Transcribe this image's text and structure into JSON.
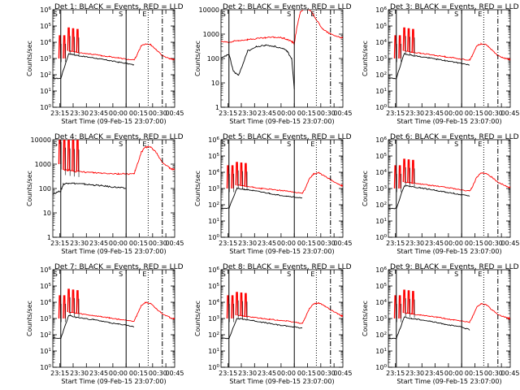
{
  "figure": {
    "start_time_label": "Start Time (09-Feb-15 23:07:00)",
    "ylabel": "Counts/sec",
    "x_tick_labels": [
      "23:15",
      "23:30",
      "23:45",
      "00:00",
      "00:15",
      "00:30",
      "00:45"
    ],
    "marker_labels": {
      "start": "S",
      "end": "E"
    },
    "colors": {
      "events": "#000000",
      "lld": "#ff0000",
      "axes": "#000000",
      "background": "#ffffff"
    }
  },
  "chart_data": [
    {
      "type": "line",
      "title": "Det 1: BLACK = Events, RED = LLD",
      "yscale": "log",
      "ylim": [
        1,
        1000000
      ],
      "ytick_labels": [
        "10^0",
        "10^1",
        "10^2",
        "10^3",
        "10^4",
        "10^5",
        "10^6"
      ],
      "x": [
        0,
        9,
        18,
        26,
        36,
        46,
        55,
        64,
        74,
        83,
        92,
        95,
        100,
        105,
        111,
        117,
        124,
        132,
        136,
        138
      ],
      "series": [
        {
          "name": "Events",
          "values": [
            60,
            60,
            2000,
            1600,
            1300,
            1100,
            900,
            750,
            600,
            500,
            400,
            null,
            null,
            null,
            null,
            null,
            null,
            null,
            null,
            null
          ]
        },
        {
          "name": "LLD",
          "values": [
            null,
            null,
            3000,
            2500,
            2100,
            1800,
            1500,
            1300,
            1100,
            900,
            800,
            1500,
            6000,
            8000,
            7000,
            3500,
            1500,
            1000,
            900,
            900
          ]
        }
      ],
      "lld_spikes": [
        8,
        13,
        18,
        23,
        28
      ],
      "markers": {
        "start": [
          9,
          83
        ],
        "end": [
          108
        ],
        "dash": [
          124
        ]
      }
    },
    {
      "type": "line",
      "title": "Det 2: BLACK = Events, RED = LLD",
      "yscale": "log",
      "ylim": [
        1,
        10000
      ],
      "ytick_labels": [
        "1",
        "10",
        "100",
        "1000",
        "10000"
      ],
      "x": [
        0,
        9,
        14,
        20,
        30,
        40,
        50,
        60,
        70,
        75,
        80,
        83,
        86,
        90,
        95,
        100,
        105,
        110,
        116,
        124,
        132,
        138
      ],
      "series": [
        {
          "name": "Events",
          "values": [
            100,
            150,
            30,
            20,
            200,
            300,
            350,
            320,
            250,
            200,
            100,
            6,
            null,
            null,
            null,
            null,
            null,
            null,
            null,
            null,
            null,
            null
          ]
        },
        {
          "name": "LLD",
          "values": [
            500,
            450,
            500,
            550,
            600,
            650,
            700,
            750,
            700,
            600,
            500,
            400,
            2000,
            8000,
            12000,
            10000,
            6000,
            3000,
            1500,
            1000,
            800,
            700
          ]
        }
      ],
      "lld_spikes": [],
      "markers": {
        "start": [
          9,
          83
        ],
        "end": [
          108
        ],
        "dash": [
          124
        ]
      }
    },
    {
      "type": "line",
      "title": "Det 3: BLACK = Events, RED = LLD",
      "yscale": "log",
      "ylim": [
        1,
        1000000
      ],
      "ytick_labels": [
        "10^0",
        "10^1",
        "10^2",
        "10^3",
        "10^4",
        "10^5",
        "10^6"
      ],
      "x": [
        0,
        9,
        18,
        26,
        36,
        46,
        55,
        64,
        74,
        83,
        92,
        95,
        100,
        105,
        111,
        117,
        124,
        132,
        136,
        138
      ],
      "series": [
        {
          "name": "Events",
          "values": [
            60,
            60,
            2000,
            1600,
            1300,
            1100,
            900,
            750,
            600,
            500,
            400,
            null,
            null,
            null,
            null,
            null,
            null,
            null,
            null,
            null
          ]
        },
        {
          "name": "LLD",
          "values": [
            null,
            null,
            3000,
            2500,
            2100,
            1800,
            1500,
            1300,
            1100,
            900,
            800,
            1500,
            6000,
            8000,
            7000,
            3500,
            1500,
            1000,
            900,
            900
          ]
        }
      ],
      "lld_spikes": [
        8,
        13,
        18,
        23,
        28
      ],
      "markers": {
        "start": [
          9,
          83
        ],
        "end": [
          108
        ],
        "dash": [
          124
        ]
      }
    },
    {
      "type": "line",
      "title": "Det 4: BLACK = Events, RED = LLD",
      "yscale": "log",
      "ylim": [
        1,
        10000
      ],
      "ytick_labels": [
        "1",
        "10",
        "100",
        "1000",
        "10000"
      ],
      "x": [
        0,
        9,
        12,
        18,
        26,
        36,
        46,
        55,
        64,
        74,
        83,
        92,
        95,
        100,
        105,
        111,
        117,
        124,
        132,
        136,
        138
      ],
      "series": [
        {
          "name": "Events",
          "values": [
            60,
            80,
            150,
            170,
            160,
            150,
            140,
            130,
            120,
            110,
            100,
            null,
            null,
            null,
            null,
            null,
            null,
            null,
            null,
            null,
            null
          ]
        },
        {
          "name": "LLD",
          "values": [
            null,
            null,
            600,
            550,
            500,
            470,
            450,
            430,
            420,
            400,
            400,
            400,
            800,
            3000,
            5000,
            5000,
            3000,
            1200,
            700,
            600,
            600
          ]
        }
      ],
      "lld_spikes": [
        8,
        13,
        18,
        23,
        28
      ],
      "markers": {
        "start": [
          9,
          83
        ],
        "end": [
          108
        ],
        "dash": [
          124
        ]
      }
    },
    {
      "type": "line",
      "title": "Det 5: BLACK = Events, RED = LLD",
      "yscale": "log",
      "ylim": [
        1,
        1000000
      ],
      "ytick_labels": [
        "10^0",
        "10^1",
        "10^2",
        "10^3",
        "10^4",
        "10^5",
        "10^6"
      ],
      "x": [
        0,
        9,
        18,
        26,
        36,
        46,
        55,
        64,
        74,
        83,
        92,
        95,
        100,
        105,
        111,
        117,
        124,
        132,
        136,
        138
      ],
      "series": [
        {
          "name": "Events",
          "values": [
            60,
            60,
            1000,
            900,
            750,
            600,
            500,
            400,
            350,
            300,
            250,
            null,
            null,
            null,
            null,
            null,
            null,
            null,
            null,
            null
          ]
        },
        {
          "name": "LLD",
          "values": [
            null,
            null,
            1600,
            1400,
            1200,
            1000,
            900,
            800,
            700,
            600,
            500,
            900,
            4000,
            8000,
            9000,
            6000,
            3500,
            2000,
            1500,
            1500
          ]
        }
      ],
      "lld_spikes": [
        8,
        13,
        18,
        23,
        28
      ],
      "markers": {
        "start": [
          9,
          83
        ],
        "end": [
          108
        ],
        "dash": [
          124
        ]
      }
    },
    {
      "type": "line",
      "title": "Det 6: BLACK = Events, RED = LLD",
      "yscale": "log",
      "ylim": [
        1,
        1000000
      ],
      "ytick_labels": [
        "10^0",
        "10^1",
        "10^2",
        "10^3",
        "10^4",
        "10^5",
        "10^6"
      ],
      "x": [
        0,
        9,
        18,
        26,
        36,
        46,
        55,
        64,
        74,
        83,
        92,
        95,
        100,
        105,
        111,
        117,
        124,
        132,
        136,
        138
      ],
      "series": [
        {
          "name": "Events",
          "values": [
            60,
            60,
            1500,
            1300,
            1100,
            900,
            750,
            600,
            500,
            400,
            350,
            null,
            null,
            null,
            null,
            null,
            null,
            null,
            null,
            null
          ]
        },
        {
          "name": "LLD",
          "values": [
            null,
            null,
            2500,
            2200,
            1900,
            1600,
            1400,
            1200,
            1000,
            800,
            700,
            1200,
            5000,
            9000,
            8000,
            5000,
            2500,
            1500,
            1200,
            1200
          ]
        }
      ],
      "lld_spikes": [
        8,
        13,
        18,
        23,
        28
      ],
      "markers": {
        "start": [
          9,
          83
        ],
        "end": [
          108
        ],
        "dash": [
          124
        ]
      }
    },
    {
      "type": "line",
      "title": "Det 7: BLACK = Events, RED = LLD",
      "yscale": "log",
      "ylim": [
        1,
        1000000
      ],
      "ytick_labels": [
        "10^0",
        "10^1",
        "10^2",
        "10^3",
        "10^4",
        "10^5",
        "10^6"
      ],
      "x": [
        0,
        9,
        18,
        26,
        36,
        46,
        55,
        64,
        74,
        83,
        92,
        95,
        100,
        105,
        111,
        117,
        124,
        132,
        136,
        138
      ],
      "series": [
        {
          "name": "Events",
          "values": [
            60,
            60,
            1500,
            1200,
            1000,
            850,
            700,
            550,
            450,
            400,
            300,
            null,
            null,
            null,
            null,
            null,
            null,
            null,
            null,
            null
          ]
        },
        {
          "name": "LLD",
          "values": [
            null,
            null,
            2500,
            2100,
            1800,
            1500,
            1300,
            1100,
            900,
            800,
            700,
            1500,
            6000,
            10000,
            8000,
            4000,
            2000,
            1200,
            1000,
            1000
          ]
        }
      ],
      "lld_spikes": [
        8,
        13,
        18,
        23,
        28
      ],
      "markers": {
        "start": [
          9,
          83
        ],
        "end": [
          108
        ],
        "dash": [
          124
        ]
      }
    },
    {
      "type": "line",
      "title": "Det 8: BLACK = Events, RED = LLD",
      "yscale": "log",
      "ylim": [
        1,
        1000000
      ],
      "ytick_labels": [
        "10^0",
        "10^1",
        "10^2",
        "10^3",
        "10^4",
        "10^5",
        "10^6"
      ],
      "x": [
        0,
        9,
        18,
        26,
        36,
        46,
        55,
        64,
        74,
        83,
        92,
        95,
        100,
        105,
        111,
        117,
        124,
        132,
        136,
        138
      ],
      "series": [
        {
          "name": "Events",
          "values": [
            60,
            60,
            1000,
            900,
            750,
            600,
            500,
            400,
            350,
            300,
            250,
            null,
            null,
            null,
            null,
            null,
            null,
            null,
            null,
            null
          ]
        },
        {
          "name": "LLD",
          "values": [
            null,
            null,
            1600,
            1400,
            1200,
            1000,
            900,
            800,
            700,
            600,
            500,
            1000,
            4000,
            8000,
            9000,
            6000,
            3500,
            2000,
            1500,
            1500
          ]
        }
      ],
      "lld_spikes": [
        8,
        13,
        18,
        23,
        28
      ],
      "markers": {
        "start": [
          9,
          83
        ],
        "end": [
          108
        ],
        "dash": [
          124
        ]
      }
    },
    {
      "type": "line",
      "title": "Det 9: BLACK = Events, RED = LLD",
      "yscale": "log",
      "ylim": [
        1,
        1000000
      ],
      "ytick_labels": [
        "10^0",
        "10^1",
        "10^2",
        "10^3",
        "10^4",
        "10^5",
        "10^6"
      ],
      "x": [
        0,
        9,
        18,
        26,
        36,
        46,
        55,
        64,
        74,
        83,
        92,
        95,
        100,
        105,
        111,
        117,
        124,
        132,
        136,
        138
      ],
      "series": [
        {
          "name": "Events",
          "values": [
            60,
            60,
            1200,
            1000,
            850,
            700,
            550,
            450,
            350,
            300,
            200,
            null,
            null,
            null,
            null,
            null,
            null,
            null,
            null,
            null
          ]
        },
        {
          "name": "LLD",
          "values": [
            null,
            null,
            2200,
            1900,
            1600,
            1400,
            1200,
            1000,
            800,
            700,
            600,
            1200,
            5000,
            8000,
            7000,
            3500,
            1800,
            1200,
            1000,
            1000
          ]
        }
      ],
      "lld_spikes": [
        8,
        13,
        18,
        23,
        28
      ],
      "markers": {
        "start": [
          9,
          83
        ],
        "end": [
          108
        ],
        "dash": [
          124
        ]
      }
    }
  ]
}
